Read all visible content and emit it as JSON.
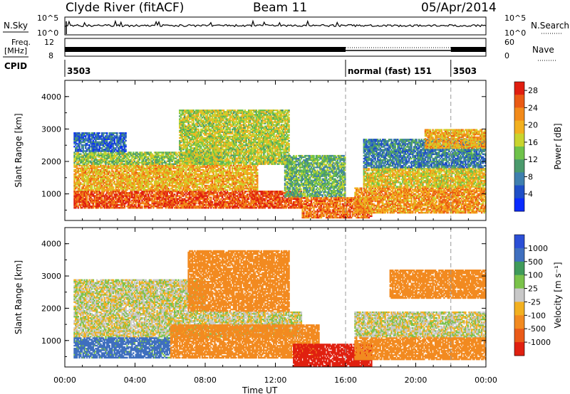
{
  "header": {
    "station": "Clyde River (fitACF)",
    "beam": "Beam 11",
    "date": "05/Apr/2014"
  },
  "strip": {
    "nsky_label": "N.Sky",
    "nsearch_label": "N.Search",
    "nsky_ticks": [
      "10^5",
      "10^0"
    ],
    "nsearch_ticks": [
      "10^5",
      "10^0"
    ],
    "freq_label_top": "Freq.",
    "freq_label_unit": "[MHz]",
    "freq_ticks": [
      "12",
      "8"
    ],
    "nave_label": "Nave",
    "nave_ticks": [
      "60",
      "0"
    ],
    "cpid_label": "CPID",
    "cpid_segments": [
      {
        "text": "3503",
        "start_hour": 0.0
      },
      {
        "text": "normal (fast) 151",
        "start_hour": 16.0
      },
      {
        "text": "3503",
        "start_hour": 22.0
      }
    ]
  },
  "colors": {
    "power_scale": [
      "#0a2bff",
      "#1f4fc7",
      "#3f7fae",
      "#4a9a6c",
      "#6ec24a",
      "#c9d42e",
      "#f2b01f",
      "#f28a1a",
      "#ea5a14",
      "#e01e10"
    ],
    "velocity_scale": [
      "#2b4fd6",
      "#3f6fbf",
      "#3f9a5a",
      "#7ac24a",
      "#c8c8c8",
      "#f2b020",
      "#f28a20",
      "#ea5a18",
      "#e02010"
    ]
  },
  "chart_data": [
    {
      "type": "heatmap",
      "title": "",
      "xlabel": "Time UT",
      "ylabel": "Slant Range [km]",
      "x_ticks": [
        "00:00",
        "04:00",
        "08:00",
        "12:00",
        "16:00",
        "20:00",
        "00:00"
      ],
      "xlim_hours": [
        0,
        24
      ],
      "y_ticks": [
        "1000",
        "2000",
        "3000",
        "4000"
      ],
      "ylim": [
        180,
        4500
      ],
      "colorbar": {
        "label": "Power [dB]",
        "ticks": [
          "4",
          "8",
          "12",
          "16",
          "20",
          "24",
          "28"
        ],
        "range": [
          0,
          30
        ]
      },
      "markers_hours": [
        16,
        22
      ],
      "regions": [
        {
          "t0": 0.5,
          "t1": 13.5,
          "r0": 550,
          "r1": 1100,
          "value": 26
        },
        {
          "t0": 0.5,
          "t1": 11.0,
          "r0": 1100,
          "r1": 1900,
          "value": 20
        },
        {
          "t0": 0.5,
          "t1": 9.0,
          "r0": 1900,
          "r1": 2300,
          "value": 14
        },
        {
          "t0": 0.5,
          "t1": 3.5,
          "r0": 2300,
          "r1": 2900,
          "value": 6
        },
        {
          "t0": 6.5,
          "t1": 12.8,
          "r0": 1900,
          "r1": 3600,
          "value": 16
        },
        {
          "t0": 12.5,
          "t1": 16.0,
          "r0": 900,
          "r1": 2200,
          "value": 12
        },
        {
          "t0": 13.5,
          "t1": 17.5,
          "r0": 250,
          "r1": 900,
          "value": 24
        },
        {
          "t0": 16.5,
          "t1": 24.0,
          "r0": 400,
          "r1": 1200,
          "value": 22
        },
        {
          "t0": 17.0,
          "t1": 24.0,
          "r0": 1200,
          "r1": 1800,
          "value": 18
        },
        {
          "t0": 17.0,
          "t1": 24.0,
          "r0": 1800,
          "r1": 2700,
          "value": 8
        },
        {
          "t0": 20.5,
          "t1": 24.0,
          "r0": 2400,
          "r1": 3000,
          "value": 20
        }
      ]
    },
    {
      "type": "heatmap",
      "title": "",
      "xlabel": "Time UT",
      "ylabel": "Slant Range [km]",
      "x_ticks": [
        "00:00",
        "04:00",
        "08:00",
        "12:00",
        "16:00",
        "20:00",
        "00:00"
      ],
      "xlim_hours": [
        0,
        24
      ],
      "y_ticks": [
        "1000",
        "2000",
        "3000",
        "4000"
      ],
      "ylim": [
        180,
        4500
      ],
      "colorbar": {
        "label": "Velocity [m s⁻¹]",
        "ticks": [
          "1000",
          "500",
          "100",
          "25",
          "-25",
          "-100",
          "-500",
          "-1000"
        ]
      },
      "markers_hours": [
        16,
        22
      ],
      "regions": [
        {
          "t0": 0.5,
          "t1": 13.5,
          "r0": 1100,
          "r1": 1900,
          "value": 0
        },
        {
          "t0": 0.5,
          "t1": 6.0,
          "r0": 450,
          "r1": 1100,
          "value": 150
        },
        {
          "t0": 6.0,
          "t1": 14.5,
          "r0": 450,
          "r1": 1500,
          "value": -300
        },
        {
          "t0": 0.5,
          "t1": 8.0,
          "r0": 1900,
          "r1": 2900,
          "value": 0
        },
        {
          "t0": 7.0,
          "t1": 12.8,
          "r0": 1900,
          "r1": 3800,
          "value": -200
        },
        {
          "t0": 13.0,
          "t1": 17.5,
          "r0": 200,
          "r1": 900,
          "value": -600
        },
        {
          "t0": 16.5,
          "t1": 24.0,
          "r0": 1100,
          "r1": 1900,
          "value": 0
        },
        {
          "t0": 16.5,
          "t1": 24.0,
          "r0": 400,
          "r1": 1100,
          "value": -250
        },
        {
          "t0": 18.5,
          "t1": 24.0,
          "r0": 2300,
          "r1": 3200,
          "value": -400
        }
      ]
    }
  ]
}
